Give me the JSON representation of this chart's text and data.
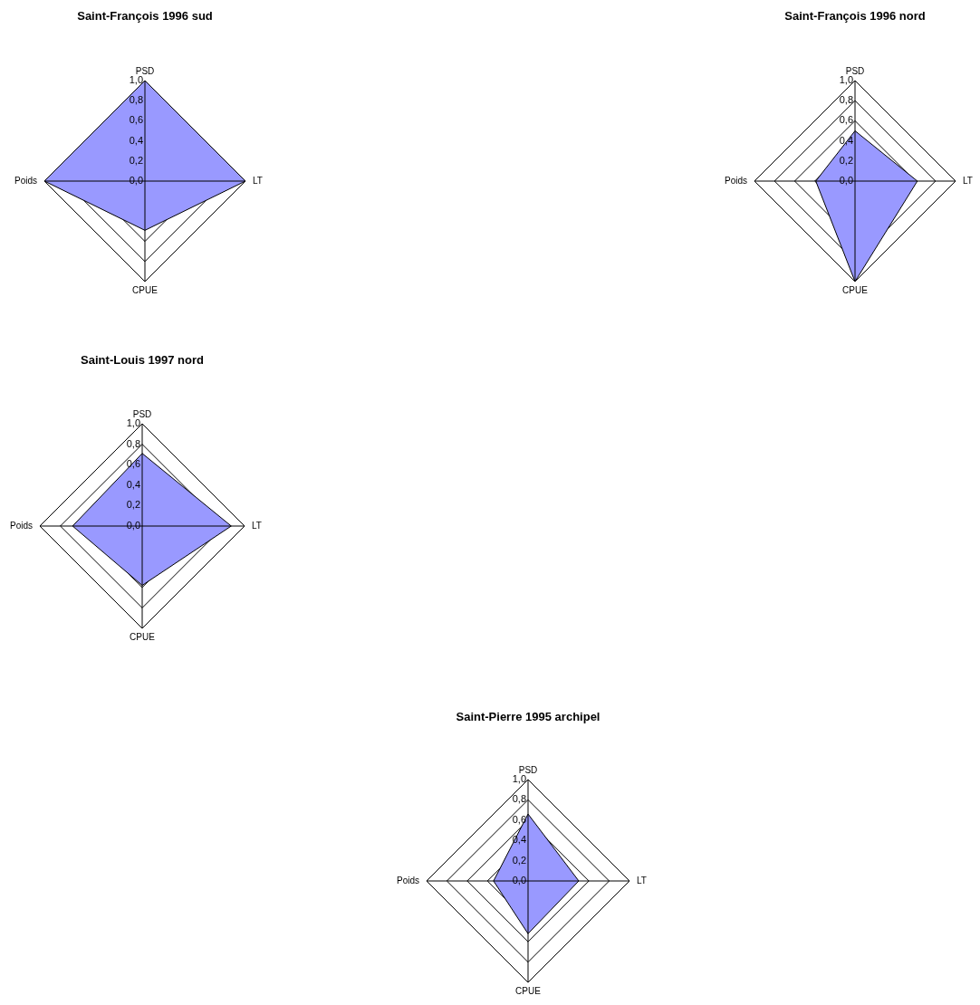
{
  "chart_data": [
    {
      "type": "radar",
      "title": "Saint-François 1996 sud",
      "categories": [
        "PSD",
        "LT",
        "CPUE",
        "Poids"
      ],
      "ylim": [
        0,
        1
      ],
      "yticks": [
        {
          "value": 0,
          "label": "0,0"
        },
        {
          "value": 0.2,
          "label": "0,2"
        },
        {
          "value": 0.4,
          "label": "0,4"
        },
        {
          "value": 0.6,
          "label": "0,6"
        },
        {
          "value": 0.8,
          "label": "0,8"
        },
        {
          "value": 1,
          "label": "1,0"
        }
      ],
      "grid": true,
      "series": [
        {
          "color": "#9999ff",
          "values": [
            1.0,
            1.0,
            0.49,
            1.0
          ]
        }
      ]
    },
    {
      "type": "radar",
      "title": "Saint-François 1996 nord",
      "categories": [
        "PSD",
        "LT",
        "CPUE",
        "Poids"
      ],
      "ylim": [
        0,
        1
      ],
      "yticks": [
        {
          "value": 0,
          "label": "0,0"
        },
        {
          "value": 0.2,
          "label": "0,2"
        },
        {
          "value": 0.4,
          "label": "0,4"
        },
        {
          "value": 0.6,
          "label": "0,6"
        },
        {
          "value": 0.8,
          "label": "0,8"
        },
        {
          "value": 1,
          "label": "1,0"
        }
      ],
      "grid": true,
      "series": [
        {
          "color": "#9999ff",
          "values": [
            0.5,
            0.62,
            1.0,
            0.39
          ]
        }
      ]
    },
    {
      "type": "radar",
      "title": "Saint-Louis 1997 nord",
      "categories": [
        "PSD",
        "LT",
        "CPUE",
        "Poids"
      ],
      "ylim": [
        0,
        1
      ],
      "yticks": [
        {
          "value": 0,
          "label": "0,0"
        },
        {
          "value": 0.2,
          "label": "0,2"
        },
        {
          "value": 0.4,
          "label": "0,4"
        },
        {
          "value": 0.6,
          "label": "0,6"
        },
        {
          "value": 0.8,
          "label": "0,8"
        },
        {
          "value": 1,
          "label": "1,0"
        }
      ],
      "grid": true,
      "series": [
        {
          "color": "#9999ff",
          "values": [
            0.71,
            0.87,
            0.58,
            0.68
          ]
        }
      ]
    },
    {
      "type": "radar",
      "title": "Saint-Pierre 1995 archipel",
      "categories": [
        "PSD",
        "LT",
        "CPUE",
        "Poids"
      ],
      "ylim": [
        0,
        1
      ],
      "yticks": [
        {
          "value": 0,
          "label": "0,0"
        },
        {
          "value": 0.2,
          "label": "0,2"
        },
        {
          "value": 0.4,
          "label": "0,4"
        },
        {
          "value": 0.6,
          "label": "0,6"
        },
        {
          "value": 0.8,
          "label": "0,8"
        },
        {
          "value": 1,
          "label": "1,0"
        }
      ],
      "grid": true,
      "series": [
        {
          "color": "#9999ff",
          "values": [
            0.66,
            0.5,
            0.52,
            0.34
          ]
        }
      ]
    }
  ]
}
